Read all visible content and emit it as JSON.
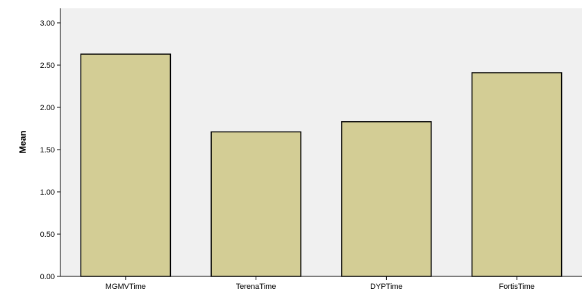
{
  "chart_data": {
    "type": "bar",
    "categories": [
      "MGMVTime",
      "TerenaTime",
      "DYPTime",
      "FortisTime"
    ],
    "values": [
      2.63,
      1.71,
      1.83,
      2.41
    ],
    "ylabel": "Mean",
    "xlabel": "",
    "ylim": [
      0,
      3.0
    ],
    "yticks": [
      "0.00",
      "0.50",
      "1.00",
      "1.50",
      "2.00",
      "2.50",
      "3.00"
    ],
    "grid": false,
    "colors": {
      "bar_fill": "#d3cd95",
      "bar_stroke": "#000000",
      "plot_background": "#f0f0f0"
    }
  }
}
